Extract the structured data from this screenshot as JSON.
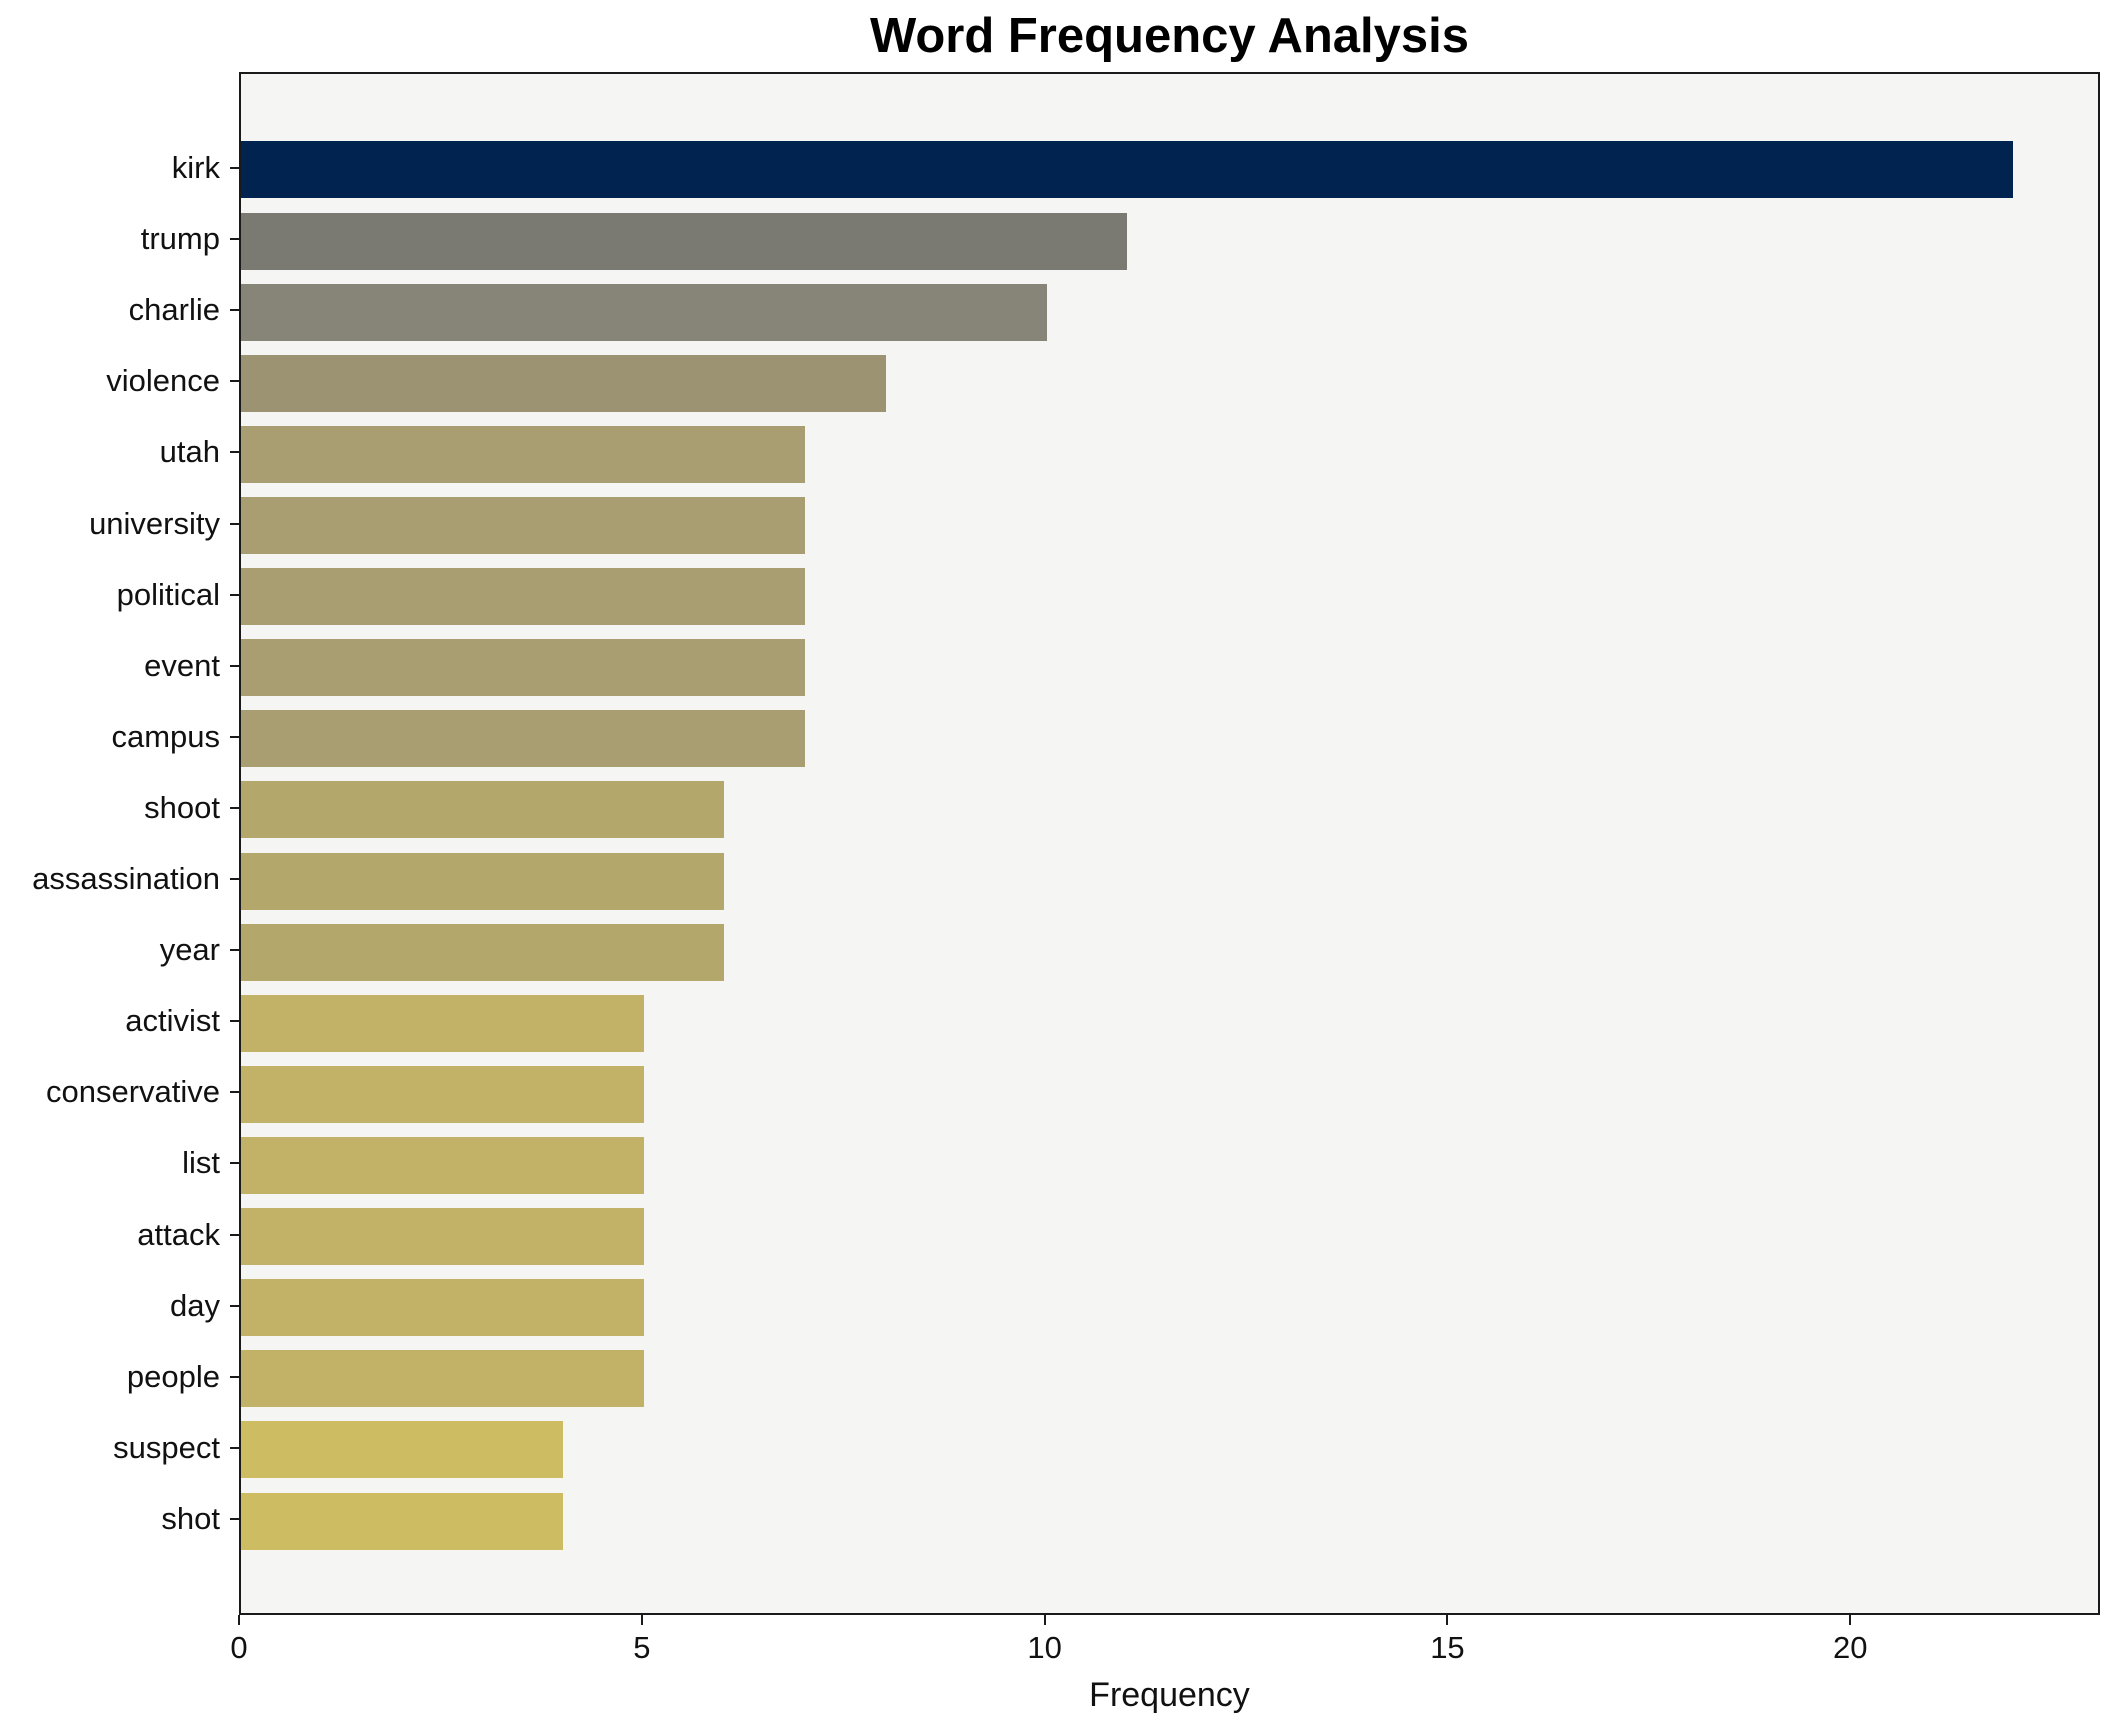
{
  "title": "Word Frequency Analysis",
  "chart_data": {
    "type": "bar",
    "orientation": "horizontal",
    "title": "Word Frequency Analysis",
    "xlabel": "Frequency",
    "ylabel": "",
    "categories": [
      "kirk",
      "trump",
      "charlie",
      "violence",
      "utah",
      "university",
      "political",
      "event",
      "campus",
      "shoot",
      "assassination",
      "year",
      "activist",
      "conservative",
      "list",
      "attack",
      "day",
      "people",
      "suspect",
      "shot"
    ],
    "values": [
      22,
      11,
      10,
      8,
      7,
      7,
      7,
      7,
      7,
      6,
      6,
      6,
      5,
      5,
      5,
      5,
      5,
      5,
      4,
      4
    ],
    "bar_colors": [
      "#00234f",
      "#7a7a72",
      "#878577",
      "#9b9372",
      "#a89e71",
      "#a89e71",
      "#a89e71",
      "#a89e71",
      "#a89e71",
      "#b3a76c",
      "#b3a76c",
      "#b3a76c",
      "#c2b267",
      "#c2b267",
      "#c2b267",
      "#c2b267",
      "#c2b267",
      "#c2b267",
      "#cebc62",
      "#cebc62"
    ],
    "xlim": [
      0,
      23.1
    ],
    "xticks": [
      0,
      5,
      10,
      15,
      20
    ],
    "grid": false,
    "legend": false,
    "plot_background": "#f5f5f4",
    "spine_color": "#1a1a1a"
  }
}
